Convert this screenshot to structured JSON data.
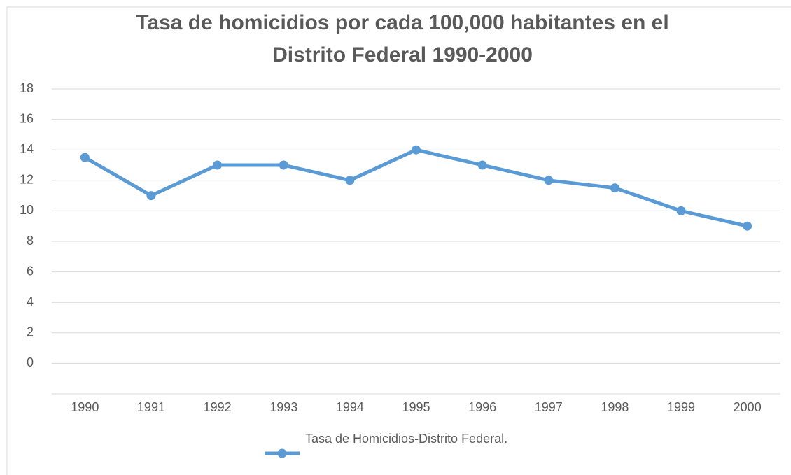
{
  "chart_data": {
    "type": "line",
    "title": "Tasa de homicidios por cada 100,000 habitantes en el Distrito Federal 1990-2000",
    "categories": [
      "1990",
      "1991",
      "1992",
      "1993",
      "1994",
      "1995",
      "1996",
      "1997",
      "1998",
      "1999",
      "2000"
    ],
    "series": [
      {
        "name": "Tasa de Homicidios-Distrito Federal.",
        "color": "#5b9bd5",
        "values": [
          13.5,
          11,
          13,
          13,
          12,
          14,
          13,
          12,
          11.5,
          10,
          9
        ]
      }
    ],
    "ylim": [
      -2,
      18
    ],
    "yticks": [
      0,
      2,
      4,
      6,
      8,
      10,
      12,
      14,
      16,
      18
    ],
    "grid": true,
    "legend": "bottom"
  }
}
